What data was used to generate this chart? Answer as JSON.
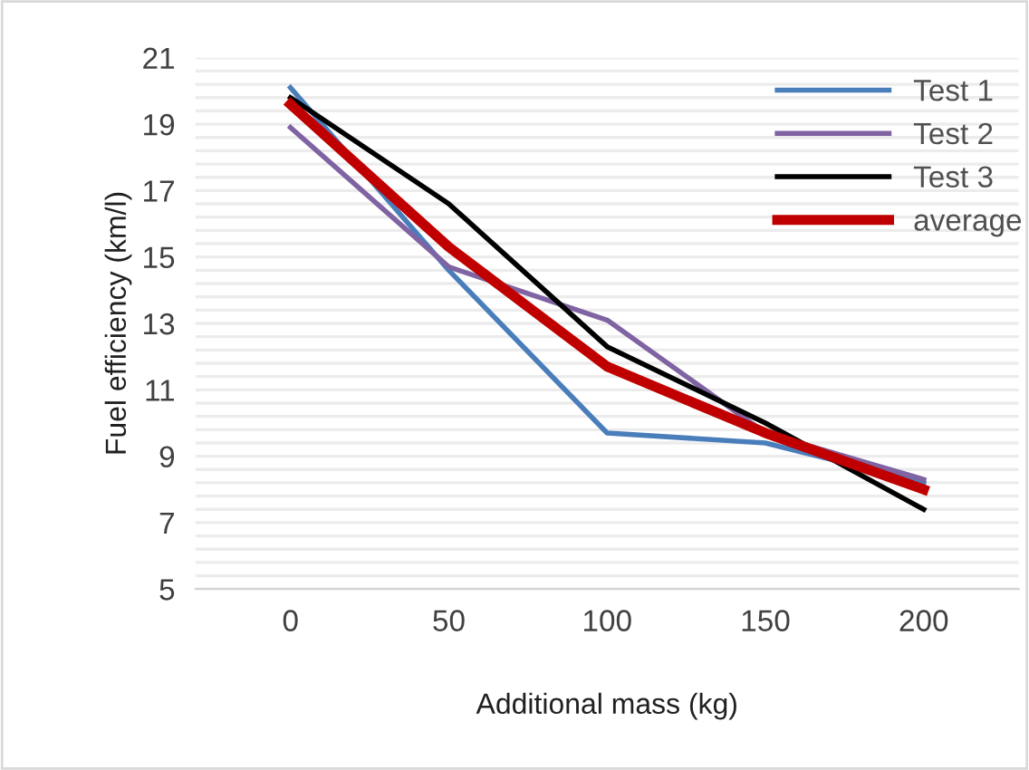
{
  "chart_data": {
    "type": "line",
    "xlabel": "Additional mass (kg)",
    "ylabel": "Fuel efficiency (km/l)",
    "categories": [
      "0",
      "50",
      "100",
      "150",
      "200"
    ],
    "series": [
      {
        "name": "Test 1",
        "color": "#4a7ebb",
        "values": [
          20.1,
          14.6,
          9.7,
          9.4,
          8.2
        ]
      },
      {
        "name": "Test 2",
        "color": "#7f63a2",
        "values": [
          18.9,
          14.7,
          13.1,
          9.7,
          8.3
        ]
      },
      {
        "name": "Test 3",
        "color": "#000000",
        "values": [
          19.8,
          16.6,
          12.3,
          10.0,
          7.4
        ]
      },
      {
        "name": "average",
        "color": "#c00000",
        "values": [
          19.6,
          15.3,
          11.7,
          9.7,
          8.0
        ]
      }
    ],
    "ylim": [
      5,
      21
    ],
    "yticks": [
      5,
      {
        "value": 5.4,
        "label": null
      },
      {
        "value": 5.8,
        "label": null
      },
      {
        "value": 6.2,
        "label": null
      },
      {
        "value": 6.6,
        "label": null
      },
      7,
      {
        "value": 7.4,
        "label": null
      },
      {
        "value": 7.8,
        "label": null
      },
      {
        "value": 8.2,
        "label": null
      },
      {
        "value": 8.6,
        "label": null
      },
      9,
      {
        "value": 9.4,
        "label": null
      },
      {
        "value": 9.8,
        "label": null
      },
      {
        "value": 10.2,
        "label": null
      },
      {
        "value": 10.6,
        "label": null
      },
      11,
      {
        "value": 11.4,
        "label": null
      },
      {
        "value": 11.8,
        "label": null
      },
      {
        "value": 12.2,
        "label": null
      },
      {
        "value": 12.6,
        "label": null
      },
      13,
      {
        "value": 13.4,
        "label": null
      },
      {
        "value": 13.8,
        "label": null
      },
      {
        "value": 14.2,
        "label": null
      },
      {
        "value": 14.6,
        "label": null
      },
      15,
      {
        "value": 15.4,
        "label": null
      },
      {
        "value": 15.8,
        "label": null
      },
      {
        "value": 16.2,
        "label": null
      },
      {
        "value": 16.6,
        "label": null
      },
      17,
      {
        "value": 17.4,
        "label": null
      },
      {
        "value": 17.8,
        "label": null
      },
      {
        "value": 18.2,
        "label": null
      },
      {
        "value": 18.6,
        "label": null
      },
      19,
      {
        "value": 19.4,
        "label": null
      },
      {
        "value": 19.8,
        "label": null
      },
      {
        "value": 20.2,
        "label": null
      },
      {
        "value": 20.6,
        "label": null
      },
      21
    ],
    "grid": "y",
    "legend": "top right",
    "marker": "none",
    "line_style": "solid"
  }
}
